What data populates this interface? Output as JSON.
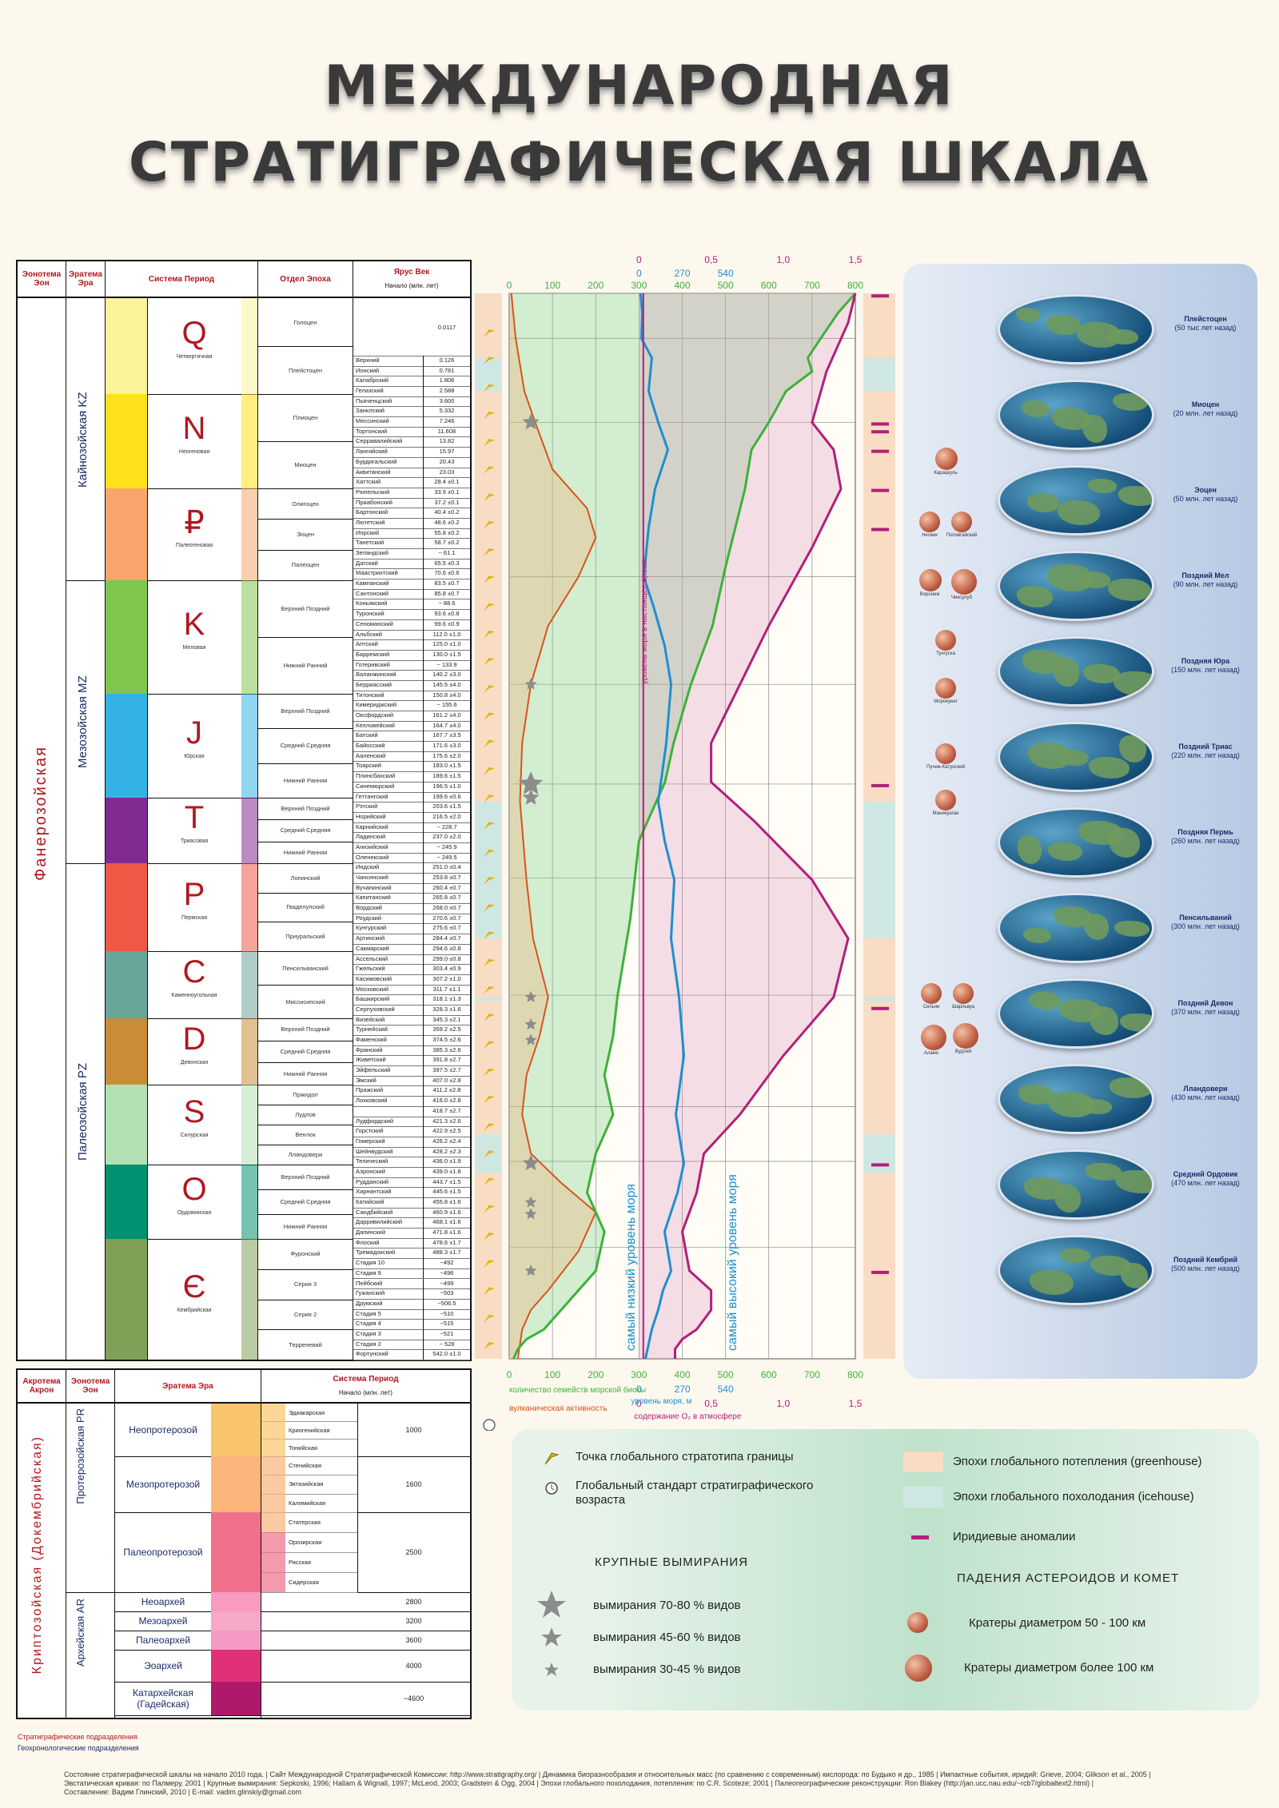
{
  "title": {
    "line1": "МЕЖДУНАРОДНАЯ",
    "line2": "СТРАТИГРАФИЧЕСКАЯ   ШКАЛА"
  },
  "strat_headers": {
    "eon": "Эонотема Эон",
    "era": "Эратема Эра",
    "system": "Система Период",
    "series": "Отдел Эпоха",
    "stage": "Ярус Век",
    "start": "Начало (млн. лет)"
  },
  "eon_label": "Фанерозойская",
  "eras": [
    {
      "name": "Кайнозойская",
      "code": "KZ"
    },
    {
      "name": "Мезозойская",
      "code": "MZ"
    },
    {
      "name": "Палеозойская",
      "code": "PZ"
    }
  ],
  "periods": [
    {
      "sym": "Q",
      "name": "Четвертичная",
      "color": "#f9f49a"
    },
    {
      "sym": "N",
      "name": "Неогеновая",
      "color": "#ffe119"
    },
    {
      "sym": "₽",
      "name": "Палеогеновая",
      "color": "#f9a56b"
    },
    {
      "sym": "K",
      "name": "Меловая",
      "color": "#7fc64e"
    },
    {
      "sym": "J",
      "name": "Юрская",
      "color": "#34b2e5"
    },
    {
      "sym": "T",
      "name": "Триасовая",
      "color": "#812b92"
    },
    {
      "sym": "P",
      "name": "Пермская",
      "color": "#ef5845"
    },
    {
      "sym": "C",
      "name": "Каменноугольная",
      "color": "#67a599"
    },
    {
      "sym": "D",
      "name": "Девонская",
      "color": "#cb8c37"
    },
    {
      "sym": "S",
      "name": "Силурская",
      "color": "#b3e1b6"
    },
    {
      "sym": "O",
      "name": "Ордовикская",
      "color": "#009270"
    },
    {
      "sym": "Є",
      "name": "Кембрийская",
      "color": "#7fa056"
    }
  ],
  "epochs": [
    {
      "name": "Голоцен"
    },
    {
      "name": "Плейстоцен"
    },
    {
      "name": "Плиоцен"
    },
    {
      "name": "Миоцен"
    },
    {
      "name": "Олигоцен"
    },
    {
      "name": "Эоцен"
    },
    {
      "name": "Палеоцен"
    },
    {
      "name": "Верхний Поздний"
    },
    {
      "name": "Нижний Ранний"
    },
    {
      "name": "Верхний Поздний"
    },
    {
      "name": "Средний Средняя"
    },
    {
      "name": "Нижний Ранняя"
    },
    {
      "name": "Верхний Поздний"
    },
    {
      "name": "Средний Средняя"
    },
    {
      "name": "Нижний Ранняя"
    },
    {
      "name": "Лопинский"
    },
    {
      "name": "Гваделупский"
    },
    {
      "name": "Приуральский"
    },
    {
      "name": "Пенсильванский"
    },
    {
      "name": "Миссисипский"
    },
    {
      "name": "Верхний Поздний"
    },
    {
      "name": "Средний Средняя"
    },
    {
      "name": "Нижний Ранняя"
    },
    {
      "name": "Пржидол"
    },
    {
      "name": "Лудлов"
    },
    {
      "name": "Венлок"
    },
    {
      "name": "Лландовери"
    },
    {
      "name": "Верхний Поздний"
    },
    {
      "name": "Средний Средняя"
    },
    {
      "name": "Нижний Ранняя"
    },
    {
      "name": "Фуронский"
    },
    {
      "name": "Серия 3"
    },
    {
      "name": "Серия 2"
    },
    {
      "name": "Терреневий"
    }
  ],
  "stages": [
    [
      "Верхний",
      "0.126"
    ],
    [
      "Ионский",
      "0.781"
    ],
    [
      "Калабрский",
      "1.806"
    ],
    [
      "Гелазский",
      "2.588"
    ],
    [
      "Пьяченцский",
      "3.600"
    ],
    [
      "Занклский",
      "5.332"
    ],
    [
      "Мессинский",
      "7.246"
    ],
    [
      "Тортонский",
      "11.608"
    ],
    [
      "Серравалийский",
      "13.82"
    ],
    [
      "Лангийский",
      "15.97"
    ],
    [
      "Бурдигальский",
      "20.43"
    ],
    [
      "Аквитанский",
      "23.03"
    ],
    [
      "Хаттский",
      "28.4 ±0.1"
    ],
    [
      "Рюпельский",
      "33.9 ±0.1"
    ],
    [
      "Приабонский",
      "37.2 ±0.1"
    ],
    [
      "Бартонский",
      "40.4 ±0.2"
    ],
    [
      "Лютетский",
      "48.6 ±0.2"
    ],
    [
      "Ипрский",
      "55.8 ±0.2"
    ],
    [
      "Танетский",
      "58.7 ±0.2"
    ],
    [
      "Зеландский",
      "~ 61.1"
    ],
    [
      "Датский",
      "65.5 ±0.3"
    ],
    [
      "Маастрихтский",
      "70.6 ±0.6"
    ],
    [
      "Кампанский",
      "83.5 ±0.7"
    ],
    [
      "Сантонский",
      "85.8 ±0.7"
    ],
    [
      "Коньякский",
      "~ 88.6"
    ],
    [
      "Туронский",
      "93.6 ±0.8"
    ],
    [
      "Сеноманский",
      "99.6 ±0.9"
    ],
    [
      "Альбский",
      "112.0 ±1.0"
    ],
    [
      "Аптский",
      "125.0 ±1.0"
    ],
    [
      "Барремский",
      "130.0 ±1.5"
    ],
    [
      "Готеривский",
      "~ 133.9"
    ],
    [
      "Валанжинский",
      "140.2 ±3.0"
    ],
    [
      "Берриасский",
      "145.5 ±4.0"
    ],
    [
      "Титонский",
      "150.8 ±4.0"
    ],
    [
      "Кимериджский",
      "~ 155.6"
    ],
    [
      "Оксфордский",
      "161.2 ±4.0"
    ],
    [
      "Келловейский",
      "164.7 ±4.0"
    ],
    [
      "Батский",
      "167.7 ±3.5"
    ],
    [
      "Байосский",
      "171.6 ±3.0"
    ],
    [
      "Ааленский",
      "175.6 ±2.0"
    ],
    [
      "Тоарский",
      "183.0 ±1.5"
    ],
    [
      "Плинсбахский",
      "189.6 ±1.5"
    ],
    [
      "Синемюрский",
      "196.5 ±1.0"
    ],
    [
      "Геттангский",
      "199.6 ±0.6"
    ],
    [
      "Рэтский",
      "203.6 ±1.5"
    ],
    [
      "Норийский",
      "216.5 ±2.0"
    ],
    [
      "Карнийский",
      "~ 228.7"
    ],
    [
      "Ладинский",
      "237.0 ±2.0"
    ],
    [
      "Анизийский",
      "~ 245.9"
    ],
    [
      "Оленекский",
      "~ 249.5"
    ],
    [
      "Индский",
      "251.0 ±0.4"
    ],
    [
      "Чансинский",
      "253.8 ±0.7"
    ],
    [
      "Вучапинский",
      "260.4 ±0.7"
    ],
    [
      "Капитанский",
      "265.8 ±0.7"
    ],
    [
      "Вордский",
      "268.0 ±0.7"
    ],
    [
      "Роудский",
      "270.6 ±0.7"
    ],
    [
      "Кунгурский",
      "275.6 ±0.7"
    ],
    [
      "Артинский",
      "284.4 ±0.7"
    ],
    [
      "Сакмарский",
      "294.6 ±0.8"
    ],
    [
      "Ассельский",
      "299.0 ±0.8"
    ],
    [
      "Гжельский",
      "303.4 ±0.9"
    ],
    [
      "Касимовский",
      "307.2 ±1.0"
    ],
    [
      "Московский",
      "311.7 ±1.1"
    ],
    [
      "Башкирский",
      "318.1 ±1.3"
    ],
    [
      "Серпуховский",
      "328.3 ±1.6"
    ],
    [
      "Визейский",
      "345.3 ±2.1"
    ],
    [
      "Турнейский",
      "359.2 ±2.5"
    ],
    [
      "Фаменский",
      "374.5 ±2.6"
    ],
    [
      "Франский",
      "385.3 ±2.6"
    ],
    [
      "Живетский",
      "391.8 ±2.7"
    ],
    [
      "Эйфельский",
      "397.5 ±2.7"
    ],
    [
      "Эмский",
      "407.0 ±2.8"
    ],
    [
      "Пражский",
      "411.2 ±2.8"
    ],
    [
      "Лохковский",
      "416.0 ±2.8"
    ],
    [
      "",
      "418.7 ±2.7"
    ],
    [
      "Лудфордский",
      "421.3 ±2.6"
    ],
    [
      "Горстский",
      "422.9 ±2.5"
    ],
    [
      "Гомерский",
      "426.2 ±2.4"
    ],
    [
      "Шейнвудский",
      "428.2 ±2.3"
    ],
    [
      "Телический",
      "436.0 ±1.9"
    ],
    [
      "Аэронский",
      "439.0 ±1.8"
    ],
    [
      "Рудданский",
      "443.7 ±1.5"
    ],
    [
      "Хирнантский",
      "445.6 ±1.5"
    ],
    [
      "Катийский",
      "455.8 ±1.6"
    ],
    [
      "Сандбийский",
      "460.9 ±1.6"
    ],
    [
      "Дарривилийский",
      "468.1 ±1.6"
    ],
    [
      "Дапинский",
      "471.8 ±1.6"
    ],
    [
      "Флоский",
      "478.6 ±1.7"
    ],
    [
      "Тремадокский",
      "488.3 ±1.7"
    ],
    [
      "Стадия 10",
      "~492"
    ],
    [
      "Стадия 9",
      "~496"
    ],
    [
      "Пейбский",
      "~499"
    ],
    [
      "Гужанский",
      "~503"
    ],
    [
      "Друмский",
      "~506.5"
    ],
    [
      "Стадия 5",
      "~510"
    ],
    [
      "Стадия 4",
      "~515"
    ],
    [
      "Стадия 3",
      "~521"
    ],
    [
      "Стадия 2",
      "~ 528"
    ],
    [
      "Фортунский",
      "542.0 ±1.0"
    ]
  ],
  "holocene_start": "0.0117",
  "pre": {
    "headers": {
      "akron": "Акротема Акрон",
      "eon": "Эонотема Эон",
      "era": "Эратема Эра",
      "system": "Система Период",
      "start": "Начало (млн. лет)"
    },
    "akron_label": "Криптозойская (Докембрийская)",
    "proterozoic": "Протерозойская",
    "pr_code": "PR",
    "archean": "Архейская",
    "ar_code": "AR",
    "eras": [
      {
        "name": "Неопротерозой",
        "start": "1000"
      },
      {
        "name": "Мезопротерозой",
        "start": "1600"
      },
      {
        "name": "Палеопротерозой",
        "start": "2500"
      },
      {
        "name": "Неоархей",
        "start": "2800"
      },
      {
        "name": "Мезоархей",
        "start": "3200"
      },
      {
        "name": "Палеоархей",
        "start": "3600"
      },
      {
        "name": "Эоархей",
        "start": "4000"
      },
      {
        "name": "Катархейская (Гадейская)",
        "start": "~4600"
      }
    ],
    "systems": [
      "Эдиакарская",
      "Криогенийская",
      "Тонийская",
      "Стенийская",
      "Эктазийская",
      "Калимийская",
      "Статерская",
      "Орозирская",
      "Рясская",
      "Сидерская"
    ]
  },
  "notes": {
    "a": "Стратиграфические подразделения",
    "b": "Геохронологические подразделения"
  },
  "chart_data": {
    "type": "line",
    "axes": {
      "biota": {
        "ticks": [
          "0",
          "100",
          "200",
          "300",
          "400",
          "500",
          "600",
          "700",
          "800"
        ],
        "label": "количество семейств морской биоты"
      },
      "volcanic": {
        "label": "вулканическая активность"
      },
      "sea": {
        "ticks": [
          "0",
          "270",
          "540"
        ],
        "label": "уровень моря, м"
      },
      "oxygen": {
        "ticks": [
          "0",
          "0,5",
          "1,0",
          "1,5"
        ],
        "label": "содержание O₂ в атмосфере"
      }
    },
    "annotations": {
      "present": "уровень моря в настоящее время",
      "low": "самый низкий уровень моря",
      "high": "самый высокий уровень моря"
    },
    "series": [
      {
        "key": "biota",
        "color": "#3db23a",
        "x": [
          800,
          760,
          720,
          690,
          700,
          640,
          600,
          560,
          545,
          500,
          470,
          420,
          380,
          360,
          340,
          300,
          290,
          280,
          250,
          240,
          220,
          240,
          200,
          180,
          220,
          200,
          160,
          120,
          80,
          40,
          20,
          10
        ],
        "t": [
          0,
          10,
          23,
          33,
          40,
          50,
          66,
          80,
          100,
          140,
          170,
          200,
          230,
          250,
          260,
          280,
          300,
          320,
          360,
          380,
          400,
          420,
          440,
          460,
          480,
          500,
          510,
          520,
          530,
          535,
          540,
          545
        ]
      },
      {
        "key": "sea",
        "color": "#1e8fd0",
        "x": [
          10,
          20,
          15,
          80,
          60,
          120,
          180,
          100,
          60,
          30,
          90,
          160,
          200,
          170,
          120,
          160,
          220,
          200,
          250,
          280,
          230,
          280,
          240,
          160,
          200,
          150,
          120,
          80,
          40
        ],
        "t": [
          0,
          10,
          23,
          33,
          50,
          66,
          80,
          100,
          120,
          145,
          160,
          180,
          200,
          230,
          260,
          280,
          300,
          330,
          360,
          390,
          420,
          445,
          460,
          480,
          500,
          510,
          520,
          530,
          545
        ]
      },
      {
        "key": "oxygen",
        "color": "#b21f7a",
        "x": [
          1.5,
          1.45,
          1.3,
          1.2,
          1.35,
          1.4,
          1.2,
          0.9,
          0.7,
          0.5,
          0.5,
          0.8,
          1.2,
          1.45,
          1.35,
          1.0,
          0.7,
          0.45,
          0.4,
          0.3,
          0.35,
          0.5,
          0.5,
          0.4,
          0.3,
          0.25,
          0.25
        ],
        "t": [
          0,
          15,
          40,
          66,
          80,
          100,
          130,
          170,
          200,
          230,
          250,
          270,
          300,
          330,
          360,
          390,
          420,
          440,
          460,
          480,
          500,
          510,
          520,
          530,
          535,
          540,
          545
        ]
      },
      {
        "key": "volcanic",
        "color": "#d9531e",
        "x": [
          5,
          15,
          35,
          60,
          100,
          180,
          200,
          160,
          90,
          50,
          30,
          25,
          40,
          55,
          90,
          70,
          40,
          30,
          50,
          120,
          200,
          160,
          90,
          50,
          30,
          20
        ],
        "t": [
          0,
          23,
          50,
          66,
          90,
          110,
          125,
          145,
          170,
          200,
          230,
          260,
          300,
          330,
          360,
          380,
          400,
          420,
          440,
          455,
          470,
          490,
          510,
          520,
          530,
          545
        ]
      }
    ],
    "extinctions": [
      {
        "size": "large",
        "t": 251
      },
      {
        "size": "medium",
        "t": 66
      },
      {
        "size": "medium",
        "t": 258
      },
      {
        "size": "medium",
        "t": 445
      },
      {
        "size": "small",
        "t": 200
      },
      {
        "size": "small",
        "t": 360
      },
      {
        "size": "small",
        "t": 374
      },
      {
        "size": "small",
        "t": 382
      },
      {
        "size": "small",
        "t": 465
      },
      {
        "size": "small",
        "t": 471
      },
      {
        "size": "small",
        "t": 500
      }
    ]
  },
  "globes": [
    {
      "name": "Плейстоцен",
      "sub": "(50 тыс лет назад)"
    },
    {
      "name": "Миоцен",
      "sub": "(20 млн. лет назад)"
    },
    {
      "name": "Эоцен",
      "sub": "(50 млн. лет назад)"
    },
    {
      "name": "Поздний Мел",
      "sub": "(90 млн. лет назад)"
    },
    {
      "name": "Поздняя Юра",
      "sub": "(150 млн. лет назад)"
    },
    {
      "name": "Поздний Триас",
      "sub": "(220 млн. лет назад)"
    },
    {
      "name": "Поздняя Пермь",
      "sub": "(260 млн. лет назад)"
    },
    {
      "name": "Пенсильваний",
      "sub": "(300 млн. лет назад)"
    },
    {
      "name": "Поздний Девон",
      "sub": "(370 млн. лет назад)"
    },
    {
      "name": "Лландовери",
      "sub": "(430 млн. лет назад)"
    },
    {
      "name": "Средний Ордовик",
      "sub": "(470 млн. лет назад)"
    },
    {
      "name": "Поздний Кембрий",
      "sub": "(500 млн. лет назад)"
    }
  ],
  "craters": [
    {
      "label": "Карацкуль"
    },
    {
      "label": "Несвик"
    },
    {
      "label": "Поповгайский"
    },
    {
      "label": "Воронеж"
    },
    {
      "label": "Чиксулуб"
    },
    {
      "label": "Тунгуска"
    },
    {
      "label": "Морокуенг"
    },
    {
      "label": "Пучеж-Катунский"
    },
    {
      "label": "Маникуаган"
    },
    {
      "label": "Сильян"
    },
    {
      "label": "Шарльвуа"
    },
    {
      "label": "Аламо"
    },
    {
      "label": "Вудлей"
    }
  ],
  "legend": {
    "gssp": "Точка глобального стратотипа границы",
    "gssa": "Глобальный стандарт стратиграфического возраста",
    "greenhouse": "Эпохи глобального потепления (greenhouse)",
    "icehouse": "Эпохи глобального похолодания (icehouse)",
    "iridium": "Иридиевые аномалии",
    "extinctions_head": "КРУПНЫЕ ВЫМИРАНИЯ",
    "ext1": "вымирания 70-80 % видов",
    "ext2": "вымирания 45-60 % видов",
    "ext3": "вымирания 30-45 % видов",
    "impacts_head": "ПАДЕНИЯ АСТЕРОИДОВ И КОМЕТ",
    "crater1": "Кратеры диаметром 50 - 100 км",
    "crater2": "Кратеры диаметром более 100 км"
  },
  "footer": {
    "line1": "Состояние стратиграфической шкалы на начало 2010 года. | Сайт Международной Стратиграфической Комиссии: http://www.stratigraphy.org/ | Динамика биоразнообразия и относительных масс (по сравнению с современным) кислорода: по Будыко и др., 1985 | Импактные события, иридий: Grieve, 2004; Glikson et al., 2005 |",
    "line2": "Эвстатическая кривая: по Палмеру, 2001 | Крупные вымирания: Sepkoski, 1996; Hallam & Wignall, 1997; McLeod, 2003; Gradstein & Ogg, 2004 | Эпохи глобального похолодания, потепления: по C.R. Scoteze; 2001 | Палеогеографические реконструкции: Ron Blakey (http://jan.ucc.nau.edu/~rcb7/globaltext2.html) |",
    "line3": "Составление: Вадим Глинский, 2010 | E-mail: vadim.glinskiy@gmail.com"
  },
  "colors": {
    "accent_red": "#b01820",
    "navy": "#1a2a6a",
    "greenhouse": "#f9dcc4",
    "icehouse": "#cfe7e3"
  }
}
